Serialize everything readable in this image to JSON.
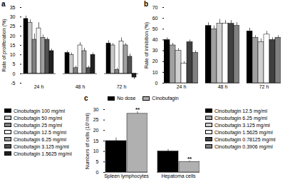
{
  "chart_data": [
    {
      "panel": "a",
      "type": "bar",
      "y_label": "Rate of proliferation (%)",
      "categories": [
        "24 h",
        "48 h",
        "72 h"
      ],
      "ylim": [
        -5,
        35
      ],
      "yticks": [
        -5,
        0,
        5,
        10,
        15,
        20,
        25,
        30,
        35
      ],
      "series": [
        {
          "name": "Cinobufagin 100 mg/ml",
          "color": "#000000",
          "values": [
            29,
            11,
            16
          ],
          "errors": [
            1.5,
            1,
            1.5
          ]
        },
        {
          "name": "Cinobufagin 50 mg/ml",
          "color": "#c8c8c8",
          "values": [
            27,
            10,
            15
          ],
          "errors": [
            1.5,
            1,
            1
          ]
        },
        {
          "name": "Cinobufagin 25 mg/ml",
          "color": "#808080",
          "values": [
            18,
            3,
            2
          ],
          "errors": [
            3,
            1,
            1
          ]
        },
        {
          "name": "Cinobufagin 12.5 mg/ml",
          "color": "#f4f4f4",
          "values": [
            24,
            15,
            17
          ],
          "errors": [
            3,
            1.5,
            2
          ]
        },
        {
          "name": "Cinobufagin 6.25 mg/ml",
          "color": "#a0a0a0",
          "values": [
            19,
            12,
            15
          ],
          "errors": [
            1.5,
            1.5,
            1
          ]
        },
        {
          "name": "Cinobufagin 3.125 mg/ml",
          "color": "#505050",
          "values": [
            18,
            3,
            9
          ],
          "errors": [
            1,
            1,
            1.5
          ]
        },
        {
          "name": "Cinobufagin 1.5625 mg/ml",
          "color": "#202020",
          "values": [
            12,
            10,
            -2
          ],
          "errors": [
            1,
            1,
            1
          ]
        }
      ]
    },
    {
      "panel": "b",
      "type": "bar",
      "y_label": "Rate of inhibition (%)",
      "categories": [
        "24 h",
        "48 h",
        "72 h"
      ],
      "ylim": [
        0,
        70
      ],
      "yticks": [
        0,
        10,
        20,
        30,
        40,
        50,
        60,
        70
      ],
      "series": [
        {
          "name": "Cinobufagin 12.5 mg/ml",
          "color": "#000000",
          "values": [
            40,
            53,
            48
          ],
          "errors": [
            2,
            3,
            3
          ]
        },
        {
          "name": "Cinobufagin 6.25 mg/ml",
          "color": "#a0a0a0",
          "values": [
            35,
            50,
            42
          ],
          "errors": [
            2,
            3,
            2
          ]
        },
        {
          "name": "Cinobufagin 3.125 mg/ml",
          "color": "#d0d0d0",
          "values": [
            30,
            55,
            38
          ],
          "errors": [
            2,
            4,
            3
          ]
        },
        {
          "name": "Cinobufagin 1.5625 mg/ml",
          "color": "#ffffff",
          "values": [
            18,
            55,
            45
          ],
          "errors": [
            2,
            3,
            3
          ]
        },
        {
          "name": "Cinobufagin 0.78125 mg/ml",
          "color": "#404040",
          "values": [
            38,
            55,
            40
          ],
          "errors": [
            2,
            3,
            2
          ]
        },
        {
          "name": "Cinobufagin 0.3906 mg/ml",
          "color": "#808080",
          "values": [
            28,
            53,
            42
          ],
          "errors": [
            2,
            3,
            2
          ]
        }
      ]
    },
    {
      "panel": "c",
      "type": "bar",
      "y_label": "Numbers of cells (10⁵/ml)",
      "categories": [
        "Spleen lymphocytes",
        "Hepatoma cells"
      ],
      "ylim": [
        0,
        30
      ],
      "yticks": [
        0,
        5,
        10,
        15,
        20,
        25,
        30
      ],
      "series": [
        {
          "name": "No dose",
          "color": "#000000",
          "values": [
            15,
            10
          ],
          "errors": [
            1.5,
            1
          ]
        },
        {
          "name": "Cinobufagin",
          "color": "#b0b0b0",
          "values": [
            28,
            5
          ],
          "errors": [
            1,
            0.5
          ]
        }
      ],
      "annotations": [
        {
          "text": "**",
          "category": "Spleen lymphocytes",
          "series": "Cinobufagin"
        },
        {
          "text": "**",
          "category": "Hepatoma cells",
          "series": "Cinobufagin"
        }
      ]
    }
  ]
}
